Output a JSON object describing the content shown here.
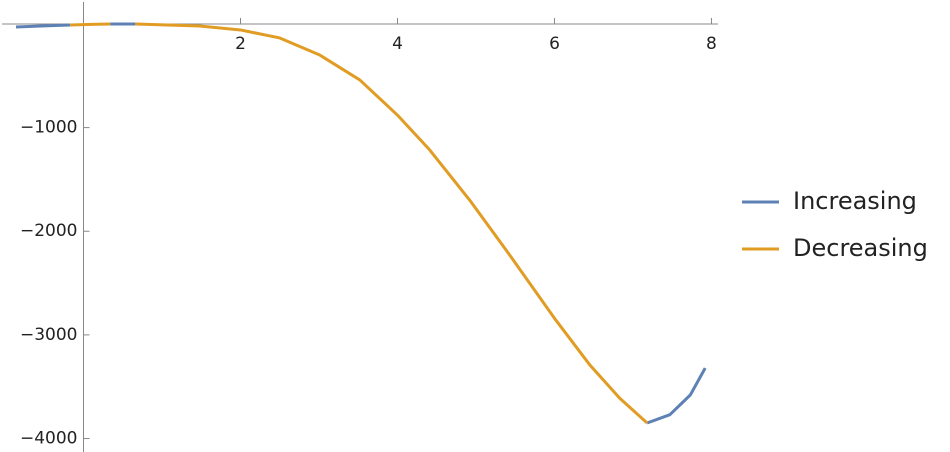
{
  "chart_data": {
    "type": "line",
    "x": [
      -0.86,
      -0.5,
      -0.17,
      0.1,
      0.34,
      0.5,
      0.66,
      1.48,
      2,
      2.5,
      3.01,
      3.52,
      4,
      4.41,
      4.92,
      5.43,
      6,
      6.45,
      6.83,
      7.18,
      7.47,
      7.73,
      7.92
    ],
    "series": [
      {
        "name": "Increasing",
        "color": "#5e81b5",
        "values": [
          -29,
          -18,
          -10,
          null,
          0,
          0,
          0,
          null,
          null,
          null,
          null,
          null,
          null,
          null,
          null,
          null,
          null,
          null,
          null,
          -3850,
          -3770,
          -3580,
          -3320
        ]
      },
      {
        "name": "Decreasing",
        "color": "#e19c24",
        "values": [
          null,
          null,
          -10,
          -4,
          0,
          null,
          0,
          -20,
          -58,
          -135,
          -300,
          -540,
          -880,
          -1215,
          -1700,
          -2230,
          -2840,
          -3290,
          -3610,
          -3850,
          null,
          null,
          null
        ]
      }
    ],
    "xlim": [
      -0.86,
      8.05
    ],
    "ylim": [
      -4130,
      180
    ],
    "xticks": [
      2,
      4,
      6,
      8
    ],
    "yticks": [
      {
        "value": -4000,
        "label": "−4000"
      },
      {
        "value": -3000,
        "label": "−3000"
      },
      {
        "value": -2000,
        "label": "−2000"
      },
      {
        "value": -1000,
        "label": "−1000"
      }
    ],
    "legend": "right"
  }
}
